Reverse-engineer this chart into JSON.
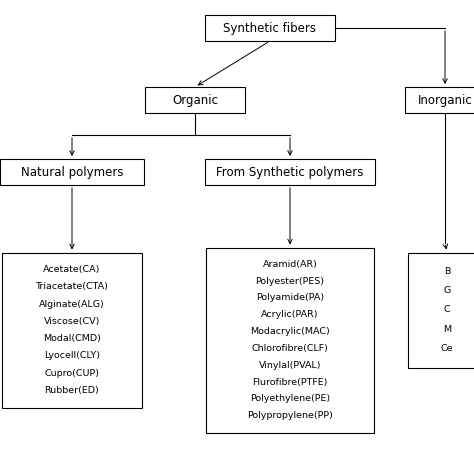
{
  "title": "Synthetic fibers",
  "organic_label": "Organic",
  "inorganic_label": "Inorganic",
  "natural_polymers_label": "Natural polymers",
  "synthetic_polymers_label": "From Synthetic polymers",
  "natural_polymers_items": [
    "Acetate(CA)",
    "Triacetate(CTA)",
    "Alginate(ALG)",
    "Viscose(CV)",
    "Modal(CMD)",
    "Lyocell(CLY)",
    "Cupro(CUP)",
    "Rubber(ED)"
  ],
  "synthetic_polymers_items": [
    "Aramid(AR)",
    "Polyester(PES)",
    "Polyamide(PA)",
    "Acrylic(PAR)",
    "Modacrylic(MAC)",
    "Chlorofibre(CLF)",
    "Vinylal(PVAL)",
    "Flurofibre(PTFE)",
    "Polyethylene(PE)",
    "Polypropylene(PP)"
  ],
  "inorganic_items": [
    "B",
    "G",
    "C",
    "M",
    "Ce"
  ],
  "bg_color": "#ffffff",
  "box_color": "#000000",
  "text_color": "#000000",
  "line_color": "#000000",
  "font_size": 6.8,
  "label_font_size": 8.5
}
